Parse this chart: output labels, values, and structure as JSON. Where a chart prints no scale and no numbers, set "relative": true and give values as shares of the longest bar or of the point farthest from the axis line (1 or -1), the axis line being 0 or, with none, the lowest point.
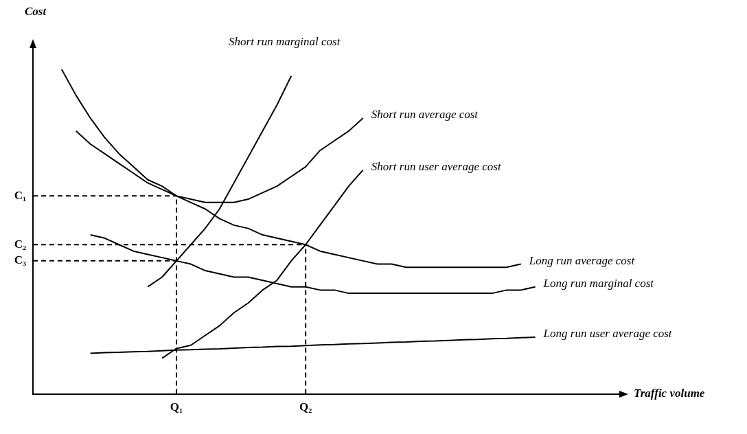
{
  "chart_data": {
    "type": "line",
    "xlabel": "Traffic volume",
    "ylabel": "Cost",
    "relative": true,
    "categories": [
      null,
      null,
      null,
      null,
      null,
      null,
      null,
      null,
      null,
      null,
      "Q₁",
      null,
      null,
      null,
      null,
      null,
      null,
      null,
      null,
      "Q₂",
      null,
      null,
      null,
      null,
      null,
      null,
      null,
      null,
      null,
      null,
      null,
      null,
      null,
      null,
      null,
      null,
      null,
      null,
      null,
      null,
      null,
      null
    ],
    "ref_lines": [
      {
        "axis": "x",
        "value": "Q₁",
        "color": "#000000",
        "line_style": "dashed"
      },
      {
        "axis": "x",
        "value": "Q₂",
        "color": "#000000",
        "line_style": "dashed"
      }
    ],
    "grid": false,
    "legend": false,
    "marker": "none",
    "line_style": "solid",
    "series": [
      {
        "name": "Short run marginal cost",
        "color": "#000000",
        "values": [
          null,
          null,
          null,
          null,
          null,
          null,
          null,
          null,
          0.33,
          0.36,
          0.41,
          0.46,
          0.51,
          0.57,
          0.65,
          0.73,
          0.81,
          0.89,
          0.98,
          null,
          null,
          null,
          null,
          null,
          null,
          null,
          null,
          null,
          null,
          null,
          null,
          null,
          null,
          null,
          null,
          null,
          null,
          null,
          null,
          null,
          null,
          null
        ]
      },
      {
        "name": "Short run average cost",
        "color": "#000000",
        "values": [
          null,
          null,
          1,
          0.92,
          0.85,
          0.79,
          0.74,
          0.7,
          0.66,
          0.64,
          0.61,
          0.6,
          0.59,
          0.59,
          0.59,
          0.6,
          0.62,
          0.64,
          0.67,
          0.7,
          0.75,
          0.78,
          0.81,
          0.85,
          null,
          null,
          null,
          null,
          null,
          null,
          null,
          null,
          null,
          null,
          null,
          null,
          null,
          null,
          null,
          null,
          null,
          null
        ]
      },
      {
        "name": "Short run user average cost",
        "color": "#000000",
        "values": [
          null,
          null,
          null,
          null,
          null,
          null,
          null,
          null,
          null,
          0.11,
          0.14,
          0.15,
          0.18,
          0.21,
          0.25,
          0.28,
          0.32,
          0.35,
          0.41,
          0.46,
          0.52,
          0.58,
          0.64,
          0.69,
          null,
          null,
          null,
          null,
          null,
          null,
          null,
          null,
          null,
          null,
          null,
          null,
          null,
          null,
          null,
          null,
          null,
          null
        ]
      },
      {
        "name": "Long run average cost",
        "color": "#000000",
        "values": [
          null,
          null,
          null,
          0.81,
          0.77,
          0.74,
          0.71,
          0.68,
          0.65,
          0.63,
          0.61,
          0.59,
          0.57,
          0.54,
          0.52,
          0.51,
          0.49,
          0.48,
          0.47,
          0.46,
          0.44,
          0.43,
          0.42,
          0.41,
          0.4,
          0.4,
          0.39,
          0.39,
          0.39,
          0.39,
          0.39,
          0.39,
          0.39,
          0.39,
          0.4,
          null,
          null,
          null,
          null,
          null,
          null,
          null
        ]
      },
      {
        "name": "Long run marginal cost",
        "color": "#000000",
        "values": [
          null,
          null,
          null,
          null,
          0.49,
          0.48,
          0.46,
          0.44,
          0.43,
          0.42,
          0.41,
          0.4,
          0.38,
          0.37,
          0.36,
          0.36,
          0.35,
          0.34,
          0.33,
          0.33,
          0.32,
          0.32,
          0.31,
          0.31,
          0.31,
          0.31,
          0.31,
          0.31,
          0.31,
          0.31,
          0.31,
          0.31,
          0.31,
          0.32,
          0.32,
          0.33,
          null,
          null,
          null,
          null,
          null,
          null
        ]
      },
      {
        "name": "Long run user average cost",
        "color": "#000000",
        "values": [
          null,
          null,
          null,
          null,
          0.125,
          0.127,
          0.128,
          0.13,
          0.131,
          0.133,
          0.135,
          0.136,
          0.138,
          0.139,
          0.141,
          0.143,
          0.144,
          0.146,
          0.147,
          0.149,
          0.151,
          0.152,
          0.154,
          0.155,
          0.157,
          0.159,
          0.16,
          0.162,
          0.163,
          0.165,
          0.167,
          0.168,
          0.17,
          0.171,
          0.173,
          0.175,
          null,
          null,
          null,
          null,
          null,
          null
        ]
      },
      {
        "name": "C₁",
        "color": "#000000",
        "line_style": "dashed",
        "values": [
          0.61,
          0.61,
          0.61,
          0.61,
          0.61,
          0.61,
          0.61,
          0.61,
          0.61,
          0.61,
          0.61,
          null,
          null,
          null,
          null,
          null,
          null,
          null,
          null,
          null,
          null,
          null,
          null,
          null,
          null,
          null,
          null,
          null,
          null,
          null,
          null,
          null,
          null,
          null,
          null,
          null,
          null,
          null,
          null,
          null,
          null,
          null
        ]
      },
      {
        "name": "C₂",
        "color": "#000000",
        "line_style": "dashed",
        "values": [
          0.46,
          0.46,
          0.46,
          0.46,
          0.46,
          0.46,
          0.46,
          0.46,
          0.46,
          0.46,
          0.46,
          0.46,
          0.46,
          0.46,
          0.46,
          0.46,
          0.46,
          0.46,
          0.46,
          0.46,
          null,
          null,
          null,
          null,
          null,
          null,
          null,
          null,
          null,
          null,
          null,
          null,
          null,
          null,
          null,
          null,
          null,
          null,
          null,
          null,
          null,
          null
        ]
      },
      {
        "name": "C₃",
        "color": "#000000",
        "line_style": "dashed",
        "values": [
          0.41,
          0.41,
          0.41,
          0.41,
          0.41,
          0.41,
          0.41,
          0.41,
          0.41,
          0.41,
          0.41,
          null,
          null,
          null,
          null,
          null,
          null,
          null,
          null,
          null,
          null,
          null,
          null,
          null,
          null,
          null,
          null,
          null,
          null,
          null,
          null,
          null,
          null,
          null,
          null,
          null,
          null,
          null,
          null,
          null,
          null,
          null
        ]
      }
    ]
  }
}
